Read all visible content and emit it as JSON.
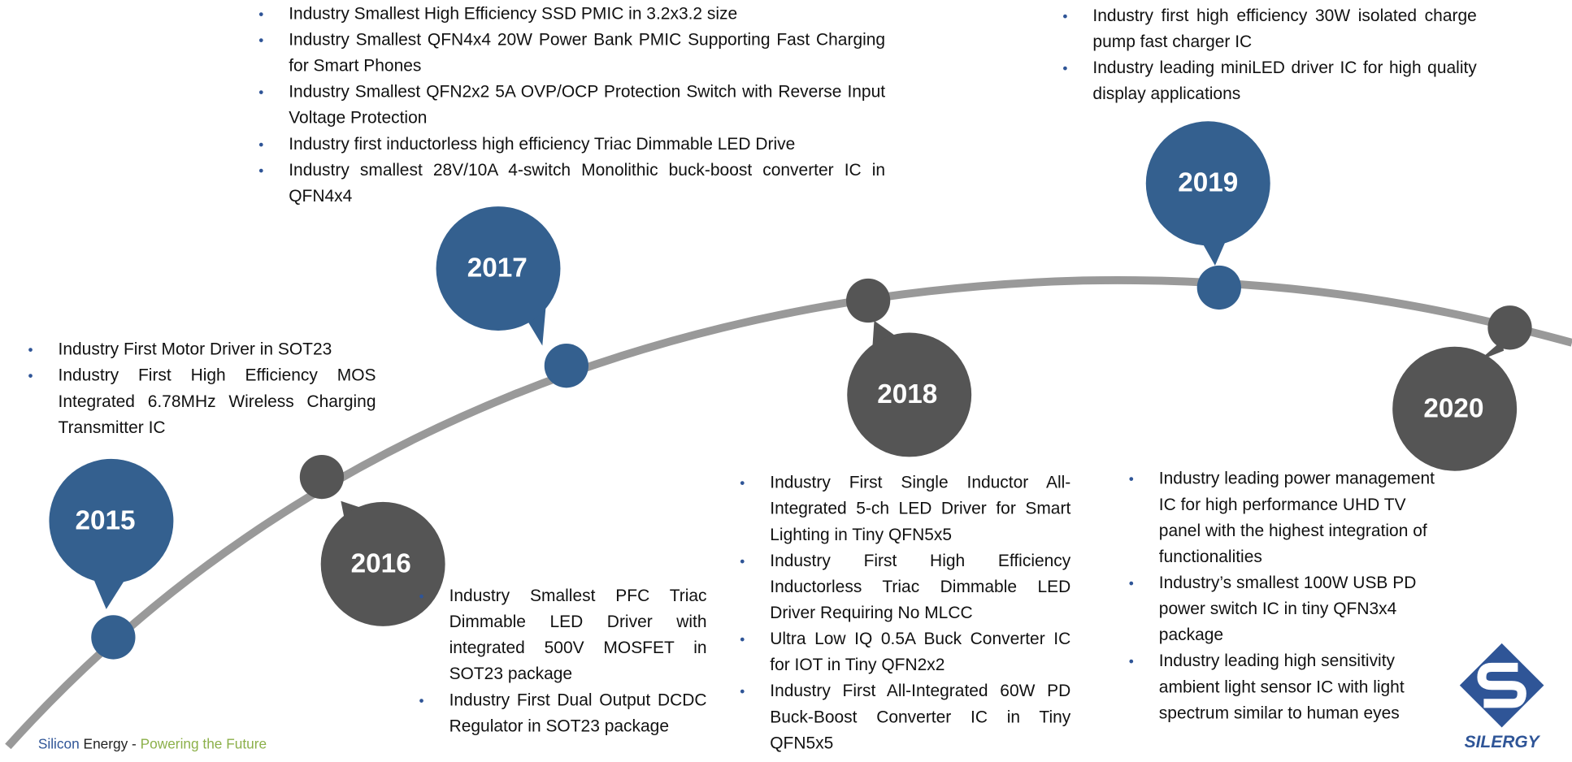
{
  "milestones": [
    {
      "year": "2015",
      "items": [
        "Industry First Motor Driver in SOT23",
        "Industry First High Efficiency MOS Integrated 6.78MHz Wireless Charging Transmitter IC"
      ]
    },
    {
      "year": "2016",
      "items": [
        "Industry Smallest PFC Triac Dimmable LED Driver with integrated 500V MOSFET in SOT23 package",
        "Industry First Dual Output DCDC Regulator in SOT23 package"
      ]
    },
    {
      "year": "2017",
      "items": [
        "Industry Smallest High Efficiency SSD PMIC in 3.2x3.2 size",
        "Industry Smallest QFN4x4 20W Power Bank PMIC Supporting Fast Charging for Smart Phones",
        "Industry Smallest QFN2x2 5A OVP/OCP Protection Switch with Reverse Input Voltage Protection",
        "Industry first inductorless high efficiency Triac Dimmable LED Drive",
        "Industry smallest 28V/10A 4-switch Monolithic buck-boost converter IC in QFN4x4"
      ]
    },
    {
      "year": "2018",
      "items": [
        "Industry First Single Inductor All-Integrated 5-ch LED Driver for Smart Lighting in Tiny QFN5x5",
        "Industry First High Efficiency Inductorless Triac Dimmable LED Driver Requiring No MLCC",
        "Ultra Low IQ 0.5A Buck Converter IC for IOT in Tiny QFN2x2",
        "Industry First All-Integrated 60W PD Buck-Boost Converter IC in Tiny QFN5x5"
      ]
    },
    {
      "year": "2019",
      "items": [
        "Industry first high efficiency 30W isolated charge pump fast charger IC",
        "Industry leading miniLED driver IC for high quality display applications"
      ]
    },
    {
      "year": "2020",
      "items": [
        "Industry leading power management IC for high performance UHD TV panel with the highest integration of functionalities",
        "Industry’s smallest 100W USB PD power switch IC in tiny QFN3x4 package",
        "Industry leading high sensitivity ambient light sensor IC with light spectrum similar to human eyes"
      ]
    }
  ],
  "footer": {
    "silicon": "Silicon",
    "energy": "Energy",
    "dash": "-",
    "tagline": "Powering the Future"
  },
  "logo": "SILERGY"
}
